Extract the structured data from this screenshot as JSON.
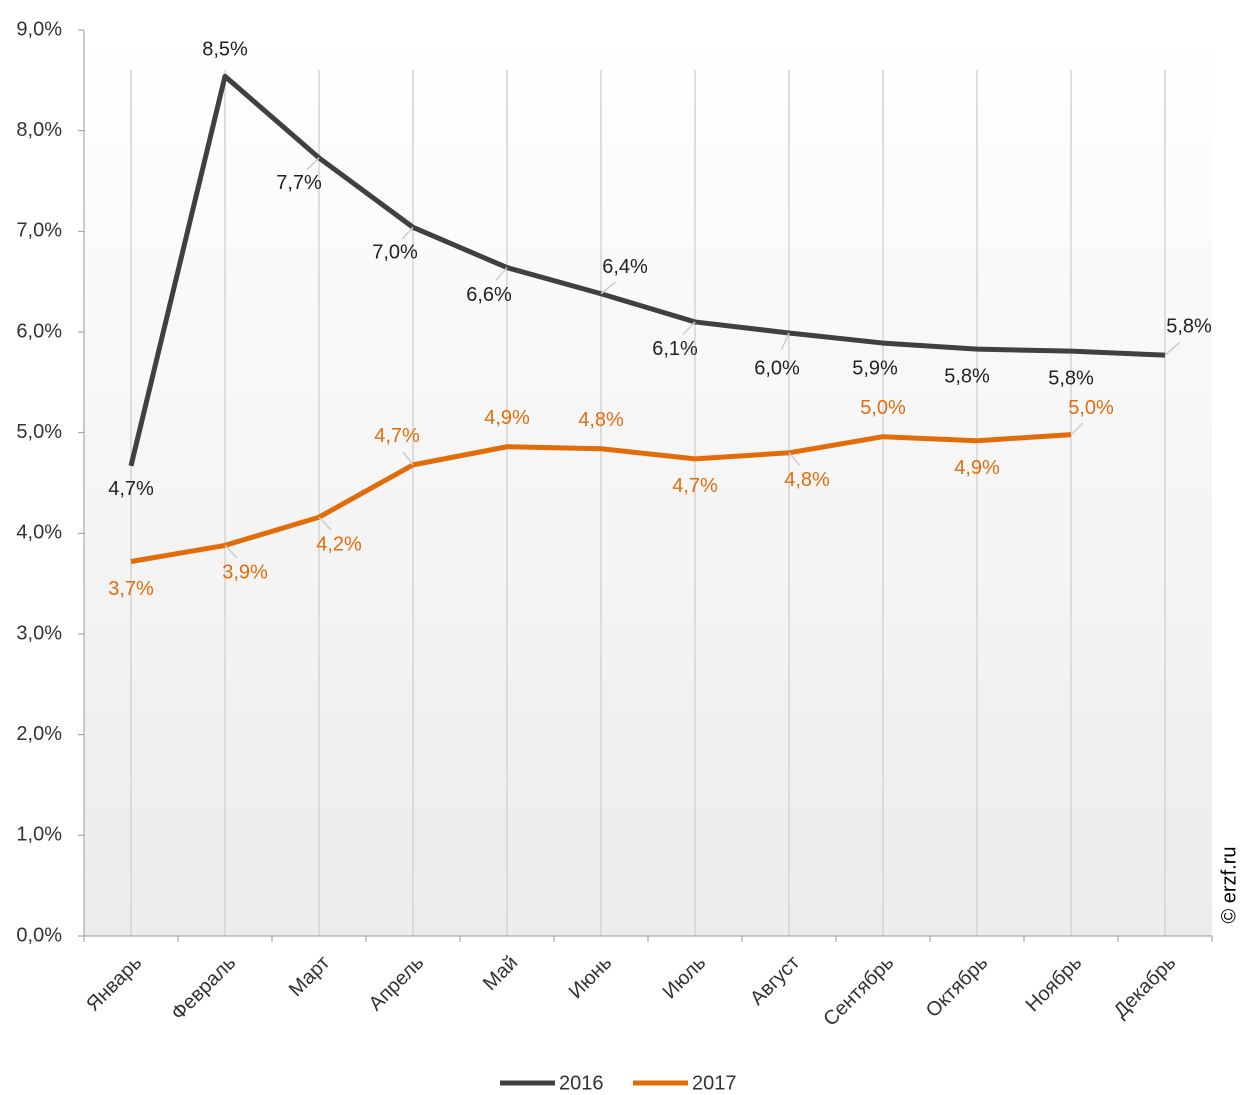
{
  "chart_data": {
    "type": "line",
    "categories": [
      "Январь",
      "Февраль",
      "Март",
      "Апрель",
      "Май",
      "Июнь",
      "Июль",
      "Август",
      "Сентябрь",
      "Октябрь",
      "Ноябрь",
      "Декабрь"
    ],
    "series": [
      {
        "name": "2016",
        "color": "#404040",
        "values": [
          4.67,
          8.54,
          7.73,
          7.04,
          6.64,
          6.38,
          6.1,
          5.99,
          5.89,
          5.83,
          5.81,
          5.77
        ],
        "value_labels": [
          "4,7%",
          "8,5%",
          "7,7%",
          "7,0%",
          "6,6%",
          "6,4%",
          "6,1%",
          "6,0%",
          "5,9%",
          "5,8%",
          "5,8%",
          "5,8%"
        ]
      },
      {
        "name": "2017",
        "color": "#e36c0a",
        "values": [
          3.72,
          3.88,
          4.16,
          4.68,
          4.86,
          4.84,
          4.74,
          4.8,
          4.96,
          4.92,
          4.98,
          null
        ],
        "value_labels": [
          "3,7%",
          "3,9%",
          "4,2%",
          "4,7%",
          "4,9%",
          "4,8%",
          "4,7%",
          "4,8%",
          "5,0%",
          "4,9%",
          "5,0%",
          null
        ]
      }
    ],
    "ylim": [
      0,
      9
    ],
    "yticks": [
      {
        "value": 0,
        "label": "0,0%"
      },
      {
        "value": 1,
        "label": "1,0%"
      },
      {
        "value": 2,
        "label": "2,0%"
      },
      {
        "value": 3,
        "label": "3,0%"
      },
      {
        "value": 4,
        "label": "4,0%"
      },
      {
        "value": 5,
        "label": "5,0%"
      },
      {
        "value": 6,
        "label": "6,0%"
      },
      {
        "value": 7,
        "label": "7,0%"
      },
      {
        "value": 8,
        "label": "8,0%"
      },
      {
        "value": 9,
        "label": "9,0%"
      }
    ],
    "legend": "bottom",
    "annotation": "© erzf.ru"
  }
}
